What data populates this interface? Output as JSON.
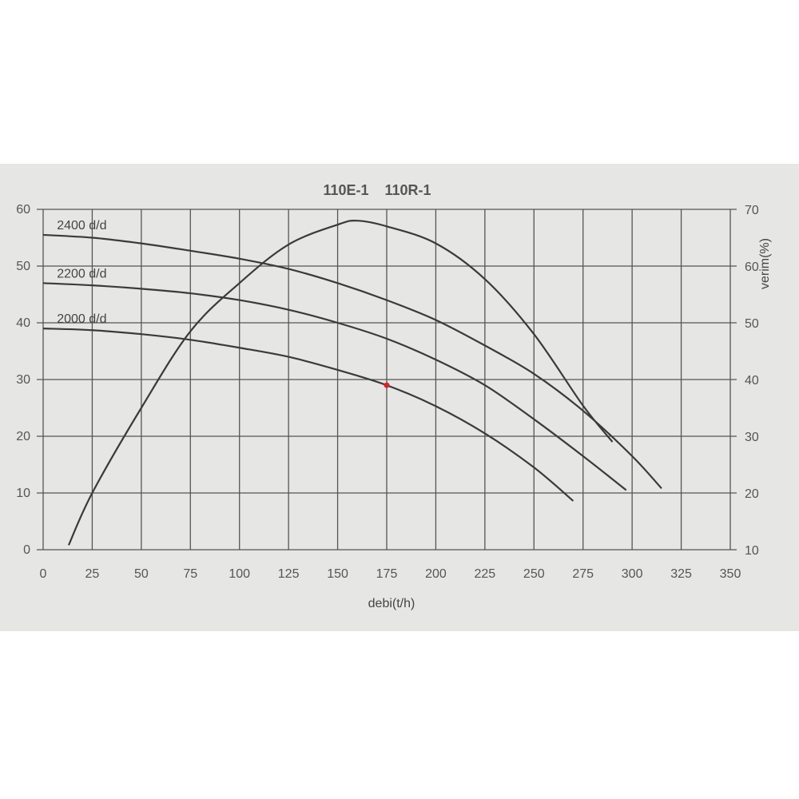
{
  "chart_data": {
    "type": "line",
    "title": "110E-1    110R-1",
    "xlabel": "debi(t/h)",
    "ylabel": "",
    "y2label": "verim(%)",
    "xlim": [
      0,
      350
    ],
    "ylim": [
      0,
      60
    ],
    "y2lim": [
      10,
      70
    ],
    "xticks": [
      0,
      25,
      50,
      75,
      100,
      125,
      150,
      175,
      200,
      225,
      250,
      275,
      300,
      325,
      350
    ],
    "yticks": [
      0,
      10,
      20,
      30,
      40,
      50,
      60
    ],
    "y2ticks": [
      10,
      20,
      30,
      40,
      50,
      60,
      70
    ],
    "grid": true,
    "series": [
      {
        "name": "2400 d/d",
        "axis": "left",
        "x": [
          0,
          25,
          50,
          75,
          100,
          125,
          150,
          175,
          200,
          225,
          250,
          275,
          300,
          315
        ],
        "y": [
          55.5,
          55,
          54,
          52.7,
          51.3,
          49.5,
          47,
          44,
          40.5,
          36,
          31,
          24.5,
          16.5,
          10.8
        ]
      },
      {
        "name": "2200 d/d",
        "axis": "left",
        "x": [
          0,
          25,
          50,
          75,
          100,
          125,
          150,
          175,
          200,
          225,
          250,
          275,
          297
        ],
        "y": [
          47,
          46.6,
          46,
          45.2,
          44,
          42.3,
          40,
          37.2,
          33.5,
          29,
          23,
          16.5,
          10.5
        ]
      },
      {
        "name": "2000 d/d",
        "axis": "left",
        "x": [
          0,
          25,
          50,
          75,
          100,
          125,
          150,
          175,
          200,
          225,
          250,
          270
        ],
        "y": [
          39,
          38.7,
          38,
          37,
          35.6,
          34,
          31.7,
          29,
          25.3,
          20.5,
          14.5,
          8.6
        ]
      },
      {
        "axis": "right",
        "x": [
          13,
          25,
          50,
          75,
          100,
          125,
          150,
          160,
          175,
          200,
          225,
          250,
          275,
          290
        ],
        "y": [
          10.8,
          20,
          35,
          48.5,
          57,
          63.8,
          67.3,
          68,
          67,
          64,
          57.7,
          48,
          35.4,
          29
        ]
      }
    ],
    "marker": {
      "x": 175,
      "y": 29,
      "color": "#e02020"
    }
  }
}
